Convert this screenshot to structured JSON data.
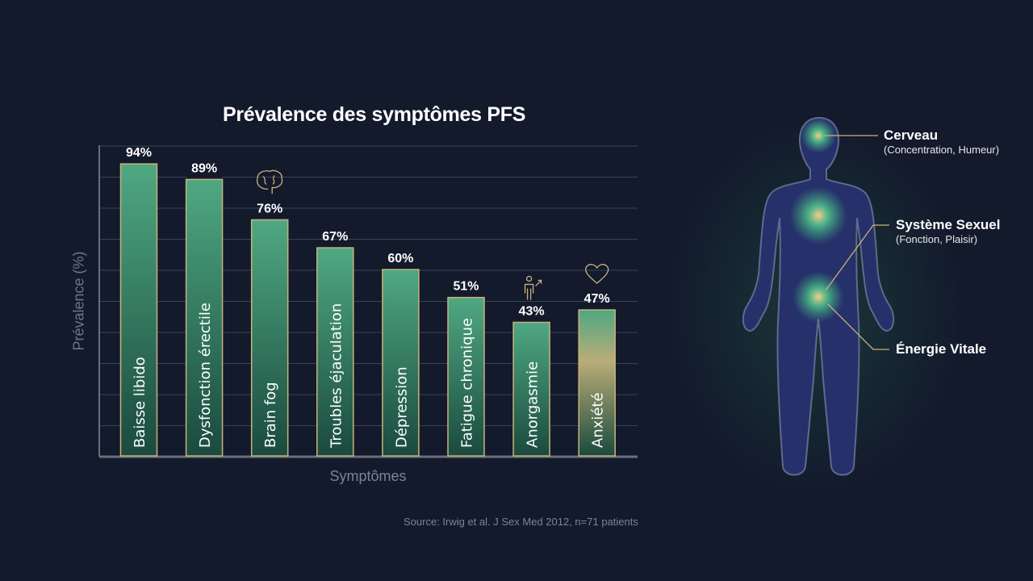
{
  "chart_data": {
    "type": "bar",
    "title": "Prévalence des symptômes PFS",
    "xlabel": "Symptômes",
    "ylabel": "Prévalence (%)",
    "ylim": [
      0,
      100
    ],
    "grid": true,
    "categories": [
      "Baisse libido",
      "Dysfonction érectile",
      "Brain fog",
      "Troubles éjaculation",
      "Dépression",
      "Fatigue chronique",
      "Anorgasmie",
      "Anxiété"
    ],
    "values": [
      94,
      89,
      76,
      67,
      60,
      51,
      43,
      47
    ],
    "value_labels": [
      "94%",
      "89%",
      "76%",
      "67%",
      "60%",
      "51%",
      "43%",
      "47%"
    ],
    "icons": {
      "2": "brain-icon",
      "6": "person-male-icon",
      "7": "heart-icon"
    },
    "colors": {
      "bar_top": "#4fa882",
      "bar_bottom": "#1a4a3e",
      "bar_border": "#c9b27a",
      "highlight_bar": "#b9ad78",
      "grid": "#3a4256"
    }
  },
  "source": "Source: Irwig et al. J Sex Med 2012, n=71 patients",
  "body_diagram": {
    "labels": [
      {
        "title": "Cerveau",
        "subtitle": "(Concentration, Humeur)"
      },
      {
        "title": "Système Sexuel",
        "subtitle": "(Fonction, Plaisir)"
      },
      {
        "title": "Énergie Vitale"
      }
    ]
  }
}
